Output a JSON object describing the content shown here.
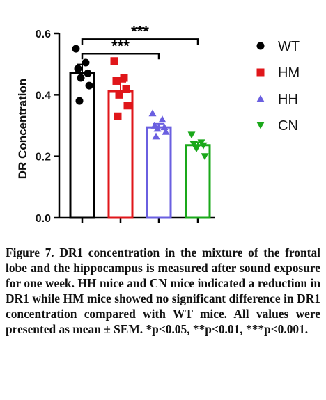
{
  "chart_data": {
    "type": "bar",
    "ylabel": "DR Concentration",
    "xlabel": "",
    "ylim": [
      0,
      0.6
    ],
    "yticks": [
      "0.0",
      "0.2",
      "0.4",
      "0.6"
    ],
    "categories": [
      "WT",
      "HM",
      "HH",
      "CN"
    ],
    "values": [
      0.472,
      0.412,
      0.294,
      0.236
    ],
    "sem": [
      0.027,
      0.03,
      0.012,
      0.01
    ],
    "points": [
      [
        0.55,
        0.505,
        0.485,
        0.47,
        0.455,
        0.43,
        0.38
      ],
      [
        0.51,
        0.455,
        0.445,
        0.42,
        0.4,
        0.365,
        0.33
      ],
      [
        0.34,
        0.32,
        0.3,
        0.295,
        0.29,
        0.28,
        0.265
      ],
      [
        0.27,
        0.245,
        0.24,
        0.235,
        0.225,
        0.2
      ]
    ],
    "colors": [
      "#000000",
      "#e0161a",
      "#6a5fe0",
      "#1aa81a"
    ],
    "markers": [
      "circle",
      "square",
      "triangle-up",
      "triangle-down"
    ],
    "legend": {
      "position": "right",
      "entries": [
        "WT",
        "HM",
        "HH",
        "CN"
      ]
    },
    "significance": [
      {
        "from": 0,
        "to": 2,
        "label": "***"
      },
      {
        "from": 0,
        "to": 3,
        "label": "***"
      }
    ]
  },
  "caption": "Figure 7. DR1 concentration in the mixture of the frontal lobe and the hippocampus is measured after sound exposure for one week. HH mice and CN mice indicated a reduction in DR1 while HM mice showed no significant difference in DR1 concentration compared with WT mice. All values were presented as mean ± SEM. *p<0.05, **p<0.01, ***p<0.001."
}
